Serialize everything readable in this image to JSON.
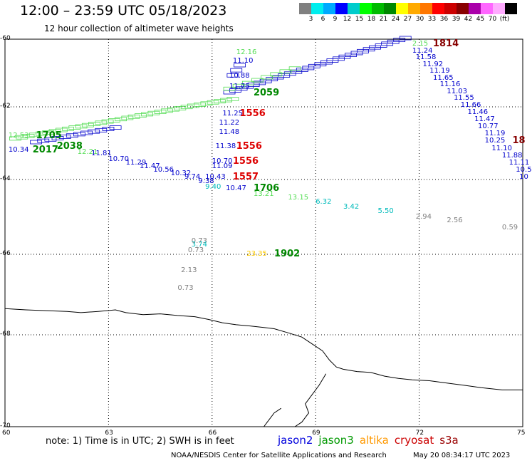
{
  "header": {
    "title": "12:00 – 23:59 UTC 05/18/2023",
    "subtitle": "12 hour collection of altimeter wave heights"
  },
  "colorbar": {
    "colors": [
      "#808080",
      "#00eeee",
      "#00aaff",
      "#0000ff",
      "#00cccc",
      "#00ff00",
      "#00bb00",
      "#008800",
      "#ffff00",
      "#ffaa00",
      "#ff7700",
      "#ff0000",
      "#cc0000",
      "#880000",
      "#aa00aa",
      "#ff66ff",
      "#ffaaff",
      "#000000"
    ],
    "labels": [
      "3",
      "6",
      "9",
      "12",
      "15",
      "18",
      "21",
      "24",
      "27",
      "30",
      "33",
      "36",
      "39",
      "42",
      "45",
      "70",
      "(ft)"
    ]
  },
  "axes": {
    "lat_labels": [
      "-60",
      "-62",
      "-64",
      "-66",
      "-68",
      "-70"
    ],
    "lon_labels": [
      "60",
      "63",
      "66",
      "69",
      "72",
      "75"
    ]
  },
  "observations": [
    {
      "text": "12.53",
      "color": "#55dd55",
      "lon": 60.1,
      "lat": -62.8
    },
    {
      "text": "1705",
      "color": "#008800",
      "lon": 60.9,
      "lat": -62.8,
      "bold": true
    },
    {
      "text": "10.34",
      "color": "#0000cc",
      "lon": 60.1,
      "lat": -63.2
    },
    {
      "text": "2017",
      "color": "#008800",
      "lon": 60.8,
      "lat": -63.2,
      "bold": true
    },
    {
      "text": "2038",
      "color": "#008800",
      "lon": 61.5,
      "lat": -63.1,
      "bold": true
    },
    {
      "text": "12.21",
      "color": "#55dd55",
      "lon": 62.1,
      "lat": -63.25
    },
    {
      "text": "11.81",
      "color": "#0000cc",
      "lon": 62.5,
      "lat": -63.3
    },
    {
      "text": "10.70",
      "color": "#0000cc",
      "lon": 63.0,
      "lat": -63.45
    },
    {
      "text": "11.29",
      "color": "#0000cc",
      "lon": 63.5,
      "lat": -63.55
    },
    {
      "text": "11.47",
      "color": "#0000cc",
      "lon": 63.9,
      "lat": -63.65
    },
    {
      "text": "10.56",
      "color": "#0000cc",
      "lon": 64.3,
      "lat": -63.75
    },
    {
      "text": "10.32",
      "color": "#0000cc",
      "lon": 64.8,
      "lat": -63.85
    },
    {
      "text": "9.74",
      "color": "#0000cc",
      "lon": 65.2,
      "lat": -63.95
    },
    {
      "text": "9.38",
      "color": "#0000cc",
      "lon": 65.6,
      "lat": -64.05
    },
    {
      "text": "11.38",
      "color": "#0000cc",
      "lon": 66.1,
      "lat": -63.1
    },
    {
      "text": "1556",
      "color": "#dd0000",
      "lon": 66.7,
      "lat": -63.1,
      "bold": true
    },
    {
      "text": "10.70",
      "color": "#0000cc",
      "lon": 66.0,
      "lat": -63.5
    },
    {
      "text": "11.09",
      "color": "#0000cc",
      "lon": 66.0,
      "lat": -63.65
    },
    {
      "text": "1556",
      "color": "#dd0000",
      "lon": 66.6,
      "lat": -63.5,
      "bold": true
    },
    {
      "text": "10.43",
      "color": "#0000cc",
      "lon": 65.8,
      "lat": -63.95
    },
    {
      "text": "1557",
      "color": "#dd0000",
      "lon": 66.6,
      "lat": -63.95,
      "bold": true
    },
    {
      "text": "9.40",
      "color": "#00bbbb",
      "lon": 65.8,
      "lat": -64.2
    },
    {
      "text": "10.47",
      "color": "#0000cc",
      "lon": 66.4,
      "lat": -64.25
    },
    {
      "text": "1706",
      "color": "#008800",
      "lon": 67.2,
      "lat": -64.25,
      "bold": true
    },
    {
      "text": "13.21",
      "color": "#55dd55",
      "lon": 67.2,
      "lat": -64.4
    },
    {
      "text": "13.15",
      "color": "#55dd55",
      "lon": 68.2,
      "lat": -64.5
    },
    {
      "text": "6.32",
      "color": "#00bbbb",
      "lon": 69.0,
      "lat": -64.6
    },
    {
      "text": "3.42",
      "color": "#00bbbb",
      "lon": 69.8,
      "lat": -64.75
    },
    {
      "text": "5.50",
      "color": "#00bbbb",
      "lon": 70.8,
      "lat": -64.85
    },
    {
      "text": "2.94",
      "color": "#808080",
      "lon": 71.9,
      "lat": -65.0
    },
    {
      "text": "2.56",
      "color": "#808080",
      "lon": 72.8,
      "lat": -65.1
    },
    {
      "text": "0.59",
      "color": "#808080",
      "lon": 74.4,
      "lat": -65.3
    },
    {
      "text": "0.73",
      "color": "#808080",
      "lon": 65.4,
      "lat": -65.65
    },
    {
      "text": "3.74",
      "color": "#00bbbb",
      "lon": 65.4,
      "lat": -65.75
    },
    {
      "text": "0.73",
      "color": "#808080",
      "lon": 65.3,
      "lat": -65.9
    },
    {
      "text": "23.35",
      "color": "#ffcc00",
      "lon": 67.0,
      "lat": -66.0
    },
    {
      "text": "1902",
      "color": "#008800",
      "lon": 67.8,
      "lat": -66.0,
      "bold": true
    },
    {
      "text": "2.13",
      "color": "#808080",
      "lon": 65.1,
      "lat": -66.4
    },
    {
      "text": "0.73",
      "color": "#808080",
      "lon": 65.0,
      "lat": -66.85
    },
    {
      "text": "12.16",
      "color": "#55dd55",
      "lon": 66.7,
      "lat": -60.4
    },
    {
      "text": "11.10",
      "color": "#0000cc",
      "lon": 66.6,
      "lat": -60.65
    },
    {
      "text": "10.88",
      "color": "#0000cc",
      "lon": 66.5,
      "lat": -61.1
    },
    {
      "text": "11.75",
      "color": "#0000cc",
      "lon": 66.5,
      "lat": -61.4
    },
    {
      "text": "2059",
      "color": "#008800",
      "lon": 67.2,
      "lat": -61.6,
      "bold": true
    },
    {
      "text": "11.25",
      "color": "#0000cc",
      "lon": 66.3,
      "lat": -62.2
    },
    {
      "text": "1556",
      "color": "#dd0000",
      "lon": 66.8,
      "lat": -62.2,
      "bold": true
    },
    {
      "text": "11.22",
      "color": "#0000cc",
      "lon": 66.2,
      "lat": -62.45
    },
    {
      "text": "11.48",
      "color": "#0000cc",
      "lon": 66.2,
      "lat": -62.7
    },
    {
      "text": "1814",
      "color": "#880000",
      "lon": 72.4,
      "lat": -60.15,
      "bold": true
    },
    {
      "text": "2.15",
      "color": "#55dd55",
      "lon": 71.8,
      "lat": -60.15
    },
    {
      "text": "11.24",
      "color": "#0000cc",
      "lon": 71.8,
      "lat": -60.35
    },
    {
      "text": "11.58",
      "color": "#0000cc",
      "lon": 71.9,
      "lat": -60.55
    },
    {
      "text": "11.92",
      "color": "#0000cc",
      "lon": 72.1,
      "lat": -60.75
    },
    {
      "text": "11.19",
      "color": "#0000cc",
      "lon": 72.3,
      "lat": -60.95
    },
    {
      "text": "11.65",
      "color": "#0000cc",
      "lon": 72.4,
      "lat": -61.15
    },
    {
      "text": "11.16",
      "color": "#0000cc",
      "lon": 72.6,
      "lat": -61.35
    },
    {
      "text": "11.03",
      "color": "#0000cc",
      "lon": 72.8,
      "lat": -61.55
    },
    {
      "text": "11.55",
      "color": "#0000cc",
      "lon": 73.0,
      "lat": -61.75
    },
    {
      "text": "11.66",
      "color": "#0000cc",
      "lon": 73.2,
      "lat": -61.95
    },
    {
      "text": "11.46",
      "color": "#0000cc",
      "lon": 73.4,
      "lat": -62.15
    },
    {
      "text": "11.47",
      "color": "#0000cc",
      "lon": 73.6,
      "lat": -62.35
    },
    {
      "text": "10.77",
      "color": "#0000cc",
      "lon": 73.7,
      "lat": -62.55
    },
    {
      "text": "11.19",
      "color": "#0000cc",
      "lon": 73.9,
      "lat": -62.75
    },
    {
      "text": "10.25",
      "color": "#0000cc",
      "lon": 73.9,
      "lat": -62.95
    },
    {
      "text": "18",
      "color": "#880000",
      "lon": 74.7,
      "lat": -62.95,
      "bold": true
    },
    {
      "text": "11.10",
      "color": "#0000cc",
      "lon": 74.1,
      "lat": -63.15
    },
    {
      "text": "11.88",
      "color": "#0000cc",
      "lon": 74.4,
      "lat": -63.35
    },
    {
      "text": "11.11",
      "color": "#0000cc",
      "lon": 74.6,
      "lat": -63.55
    },
    {
      "text": "10.5",
      "color": "#0000cc",
      "lon": 74.8,
      "lat": -63.75
    },
    {
      "text": "10",
      "color": "#0000cc",
      "lon": 74.9,
      "lat": -63.95
    }
  ],
  "tracks": [
    {
      "color": "#55dd55",
      "lon1": 60.3,
      "lat1": -62.9,
      "lon2": 66.6,
      "lat2": -61.8,
      "n": 34
    },
    {
      "color": "#0000cc",
      "lon1": 60.9,
      "lat1": -63.0,
      "lon2": 63.2,
      "lat2": -62.6,
      "n": 12
    },
    {
      "color": "#0000cc",
      "lon1": 66.5,
      "lat1": -61.6,
      "lon2": 71.6,
      "lat2": -60.0,
      "n": 30
    },
    {
      "color": "#55dd55",
      "lon1": 66.5,
      "lat1": -61.5,
      "lon2": 68.4,
      "lat2": -60.9,
      "n": 8
    },
    {
      "color": "#0000cc",
      "lon1": 66.8,
      "lat1": -60.8,
      "lon2": 66.6,
      "lat2": -61.1,
      "n": 3
    }
  ],
  "coastline": [
    [
      60,
      -67.35
    ],
    [
      60.6,
      -67.38
    ],
    [
      61.2,
      -67.4
    ],
    [
      61.8,
      -67.42
    ],
    [
      62.2,
      -67.45
    ],
    [
      62.7,
      -67.42
    ],
    [
      63.2,
      -67.38
    ],
    [
      63.5,
      -67.45
    ],
    [
      64.0,
      -67.5
    ],
    [
      64.5,
      -67.48
    ],
    [
      65.0,
      -67.52
    ],
    [
      65.5,
      -67.55
    ],
    [
      65.9,
      -67.62
    ],
    [
      66.3,
      -67.7
    ],
    [
      66.7,
      -67.75
    ],
    [
      67.1,
      -67.78
    ],
    [
      67.5,
      -67.82
    ],
    [
      67.8,
      -67.85
    ],
    [
      68.2,
      -67.95
    ],
    [
      68.6,
      -68.05
    ],
    [
      68.9,
      -68.2
    ],
    [
      69.2,
      -68.35
    ],
    [
      69.4,
      -68.55
    ],
    [
      69.6,
      -68.7
    ],
    [
      69.8,
      -68.75
    ],
    [
      70.2,
      -68.8
    ],
    [
      70.6,
      -68.82
    ],
    [
      71.0,
      -68.9
    ],
    [
      71.4,
      -68.95
    ],
    [
      71.8,
      -68.98
    ],
    [
      72.3,
      -69.0
    ],
    [
      72.8,
      -69.05
    ],
    [
      73.3,
      -69.1
    ],
    [
      73.8,
      -69.15
    ],
    [
      74.4,
      -69.2
    ],
    [
      75,
      -69.2
    ]
  ],
  "coastline2": [
    [
      69.3,
      -68.85
    ],
    [
      69.1,
      -69.1
    ],
    [
      68.9,
      -69.3
    ],
    [
      68.7,
      -69.5
    ],
    [
      68.8,
      -69.7
    ],
    [
      68.6,
      -69.9
    ],
    [
      68.4,
      -70.0
    ]
  ],
  "coastline3": [
    [
      68.0,
      -69.6
    ],
    [
      67.8,
      -69.7
    ],
    [
      67.6,
      -69.9
    ],
    [
      67.5,
      -70.0
    ]
  ],
  "note": "note: 1) Time is in UTC; 2) SWH is in feet",
  "legend": [
    {
      "label": "jason2",
      "color": "#0000dd"
    },
    {
      "label": "jason3",
      "color": "#009900"
    },
    {
      "label": "altika",
      "color": "#ff9900"
    },
    {
      "label": "cryosat",
      "color": "#cc0000"
    },
    {
      "label": "s3a",
      "color": "#990000"
    }
  ],
  "credit": "NOAA/NESDIS Center for Satellite Applications and Research",
  "stamp": "May 20 08:34:17 UTC 2023"
}
